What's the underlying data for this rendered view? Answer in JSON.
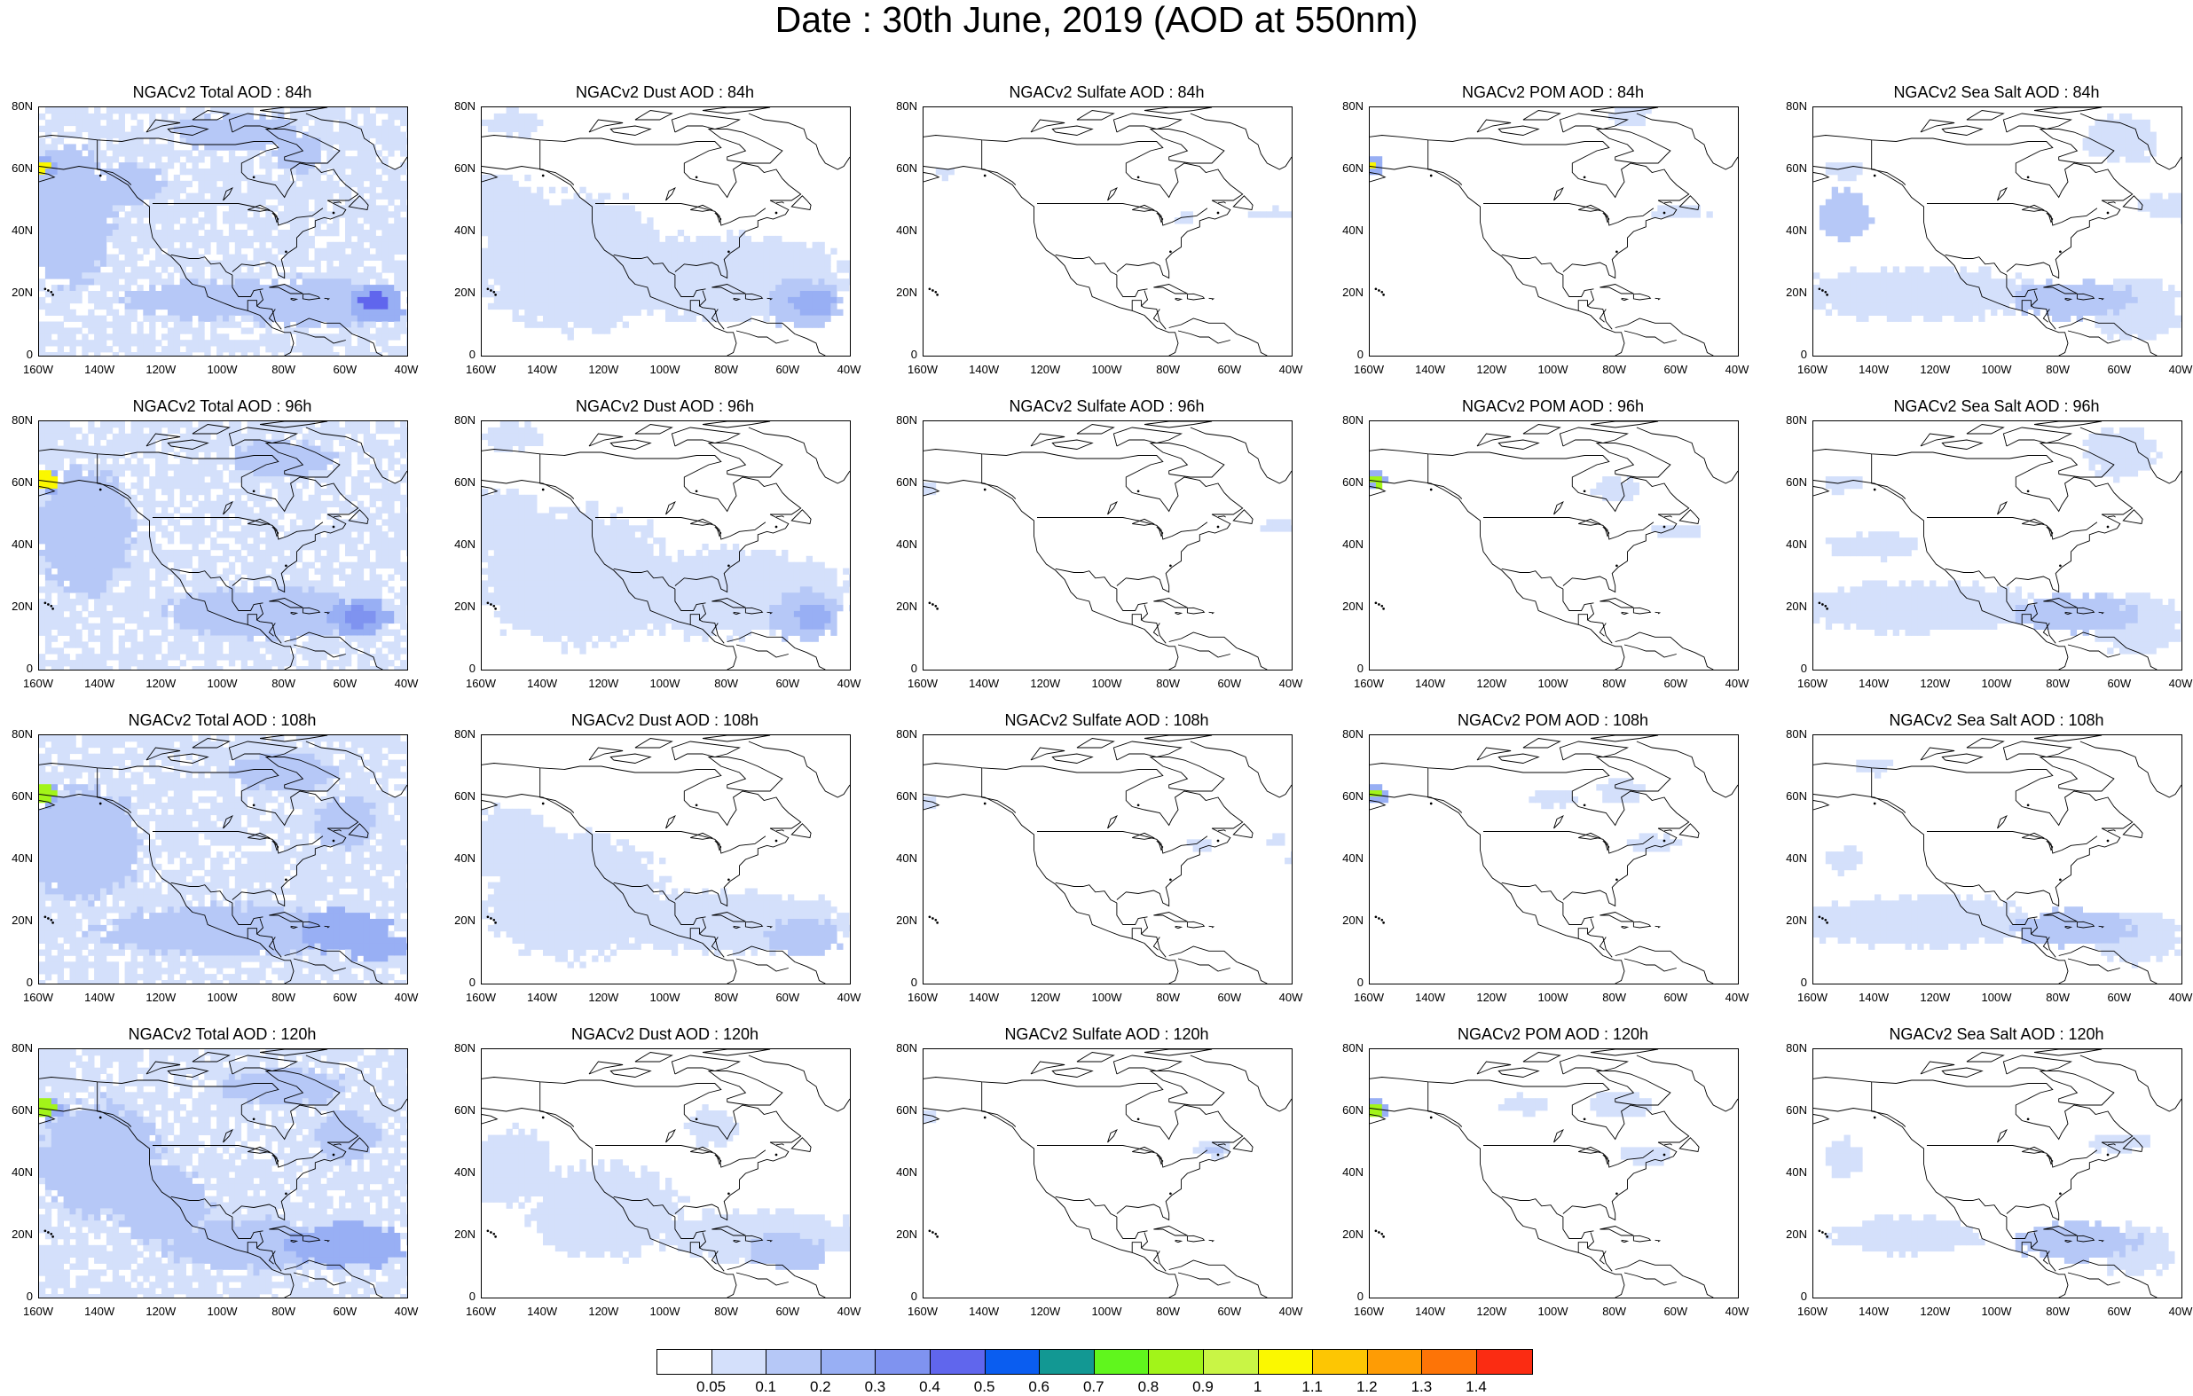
{
  "title": "Date : 30th June, 2019 (AOD at 550nm)",
  "x_ticks": [
    "160W",
    "140W",
    "120W",
    "100W",
    "80W",
    "60W",
    "40W"
  ],
  "y_ticks": [
    "80N",
    "60N",
    "40N",
    "20N",
    "0"
  ],
  "rows": [
    "84h",
    "96h",
    "108h",
    "120h"
  ],
  "panels": [
    {
      "key": "total",
      "titles": [
        "NGACv2 Total AOD : 84h",
        "NGACv2 Total AOD : 96h",
        "NGACv2 Total AOD : 108h",
        "NGACv2 Total AOD : 120h"
      ]
    },
    {
      "key": "dust",
      "titles": [
        "NGACv2 Dust AOD : 84h",
        "NGACv2 Dust AOD : 96h",
        "NGACv2 Dust AOD : 108h",
        "NGACv2 Dust AOD : 120h"
      ]
    },
    {
      "key": "sulfate",
      "titles": [
        "NGACv2 Sulfate AOD : 84h",
        "NGACv2 Sulfate AOD : 96h",
        "NGACv2 Sulfate AOD : 108h",
        "NGACv2 Sulfate AOD : 120h"
      ]
    },
    {
      "key": "pom",
      "titles": [
        "NGACv2 POM AOD : 84h",
        "NGACv2 POM AOD : 96h",
        "NGACv2 POM AOD : 108h",
        "NGACv2 POM AOD : 120h"
      ]
    },
    {
      "key": "seasalt",
      "titles": [
        "NGACv2 Sea Salt AOD : 84h",
        "NGACv2 Sea Salt AOD : 96h",
        "NGACv2 Sea Salt AOD : 108h",
        "NGACv2 Sea Salt  AOD : 120h"
      ]
    }
  ],
  "colorbar": {
    "colors": [
      "#ffffff",
      "#d4e0fb",
      "#b6c8f7",
      "#98aff4",
      "#7f93f0",
      "#6066ed",
      "#0a5df0",
      "#129893",
      "#60f61d",
      "#a2f419",
      "#c9f545",
      "#fbf800",
      "#fdc603",
      "#fe9c05",
      "#fd7407",
      "#fb2c12"
    ],
    "labels": [
      "0.05",
      "0.1",
      "0.2",
      "0.3",
      "0.4",
      "0.5",
      "0.6",
      "0.7",
      "0.8",
      "0.9",
      "1",
      "1.1",
      "1.2",
      "1.3",
      "1.4"
    ]
  }
}
